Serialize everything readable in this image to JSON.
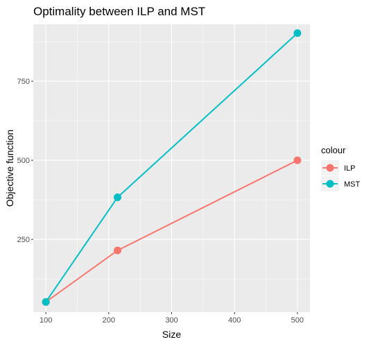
{
  "chart_data": {
    "type": "line",
    "title": "Optimality between ILP and MST",
    "xlabel": "Size",
    "ylabel": "Objective function",
    "xlim": [
      80,
      520
    ],
    "ylim": [
      20,
      930
    ],
    "x_ticks": [
      100,
      200,
      300,
      400,
      500
    ],
    "x_tick_labels": [
      "100",
      "200",
      "300",
      "400",
      "500"
    ],
    "y_ticks": [
      250,
      500,
      750
    ],
    "y_tick_labels": [
      "250",
      "500",
      "750"
    ],
    "grid": true,
    "legend": {
      "title": "colour",
      "position": "right"
    },
    "series": [
      {
        "name": "ILP",
        "color": "#F8766D",
        "x": [
          100,
          214,
          500
        ],
        "y": [
          52,
          215,
          500
        ]
      },
      {
        "name": "MST",
        "color": "#00BFC4",
        "x": [
          100,
          214,
          500
        ],
        "y": [
          52,
          383,
          902
        ]
      }
    ]
  }
}
